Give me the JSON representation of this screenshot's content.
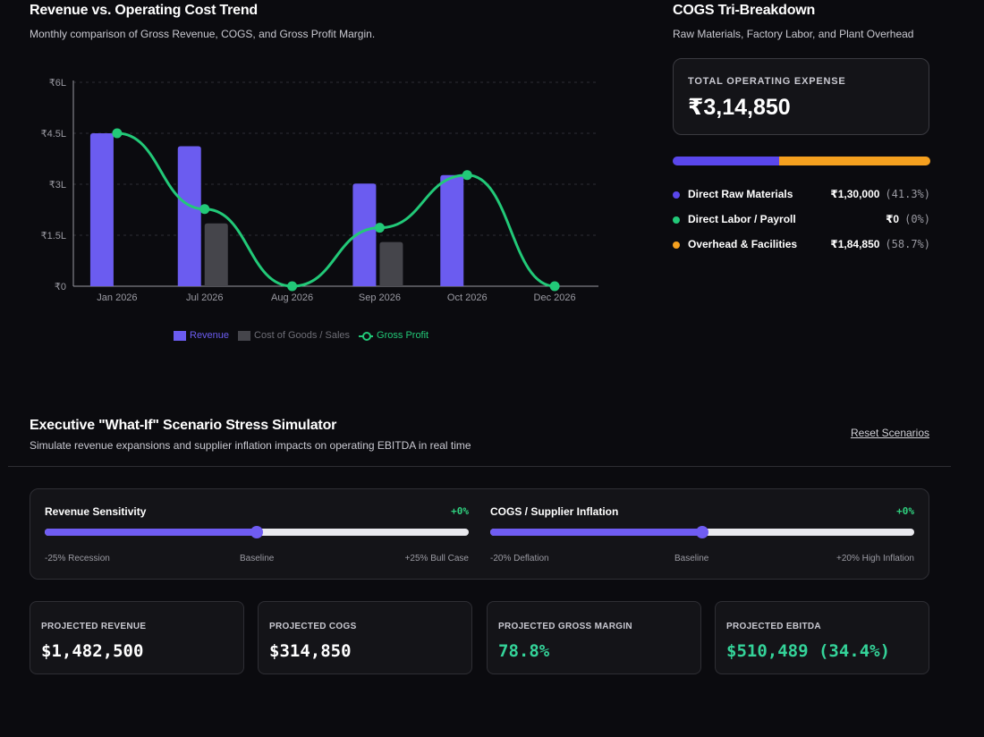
{
  "trend": {
    "title": "Revenue vs. Operating Cost Trend",
    "subtitle": "Monthly comparison of Gross Revenue, COGS, and Gross Profit Margin."
  },
  "chart_data": {
    "type": "bar",
    "categories": [
      "Jan 2026",
      "Jul 2026",
      "Aug 2026",
      "Sep 2026",
      "Oct 2026",
      "Dec 2026"
    ],
    "series": [
      {
        "name": "Revenue",
        "type": "bar",
        "color": "#6b5cf0",
        "values": [
          450000,
          412000,
          0,
          302000,
          327000,
          0
        ]
      },
      {
        "name": "Cost of Goods / Sales",
        "type": "bar",
        "color": "#45454b",
        "values": [
          0,
          185000,
          0,
          130000,
          0,
          0
        ]
      },
      {
        "name": "Gross Profit",
        "type": "line",
        "color": "#22c978",
        "values": [
          450000,
          227000,
          0,
          172000,
          327000,
          0
        ]
      }
    ],
    "ylim": [
      0,
      600000
    ],
    "yticks": [
      {
        "value": 0,
        "label": "₹0"
      },
      {
        "value": 150000,
        "label": "₹1.5L"
      },
      {
        "value": 300000,
        "label": "₹3L"
      },
      {
        "value": 450000,
        "label": "₹4.5L"
      },
      {
        "value": 600000,
        "label": "₹6L"
      }
    ],
    "grid": true,
    "legend_position": "bottom"
  },
  "legend": [
    {
      "label": "Revenue",
      "color": "#6b5cf0",
      "kind": "bar"
    },
    {
      "label": "Cost of Goods / Sales",
      "color": "#45454b",
      "text_color": "#6e6e76",
      "kind": "bar"
    },
    {
      "label": "Gross Profit",
      "color": "#22c978",
      "kind": "line"
    }
  ],
  "cogs": {
    "title": "COGS Tri-Breakdown",
    "subtitle": "Raw Materials, Factory Labor, and Plant Overhead",
    "total_label": "TOTAL OPERATING EXPENSE",
    "total_value": "₹3,14,850",
    "items": [
      {
        "label": "Direct Raw Materials",
        "amount": "₹1,30,000",
        "pct": "(41.3%)",
        "share": 41.3,
        "color": "#5a47ec"
      },
      {
        "label": "Direct Labor / Payroll",
        "amount": "₹0",
        "pct": "(0%)",
        "share": 0,
        "color": "#22c978"
      },
      {
        "label": "Overhead & Facilities",
        "amount": "₹1,84,850",
        "pct": "(58.7%)",
        "share": 58.7,
        "color": "#f5a01f"
      }
    ]
  },
  "simulator": {
    "title": "Executive \"What-If\" Scenario Stress Simulator",
    "subtitle": "Simulate revenue expansions and supplier inflation impacts on operating EBITDA in real time",
    "reset_label": "Reset Scenarios",
    "sliders": [
      {
        "title": "Revenue Sensitivity",
        "delta": "+0%",
        "value_fraction": 0.5,
        "min_label": "-25% Recession",
        "mid_label": "Baseline",
        "max_label": "+25% Bull Case"
      },
      {
        "title": "COGS / Supplier Inflation",
        "delta": "+0%",
        "value_fraction": 0.5,
        "min_label": "-20% Deflation",
        "mid_label": "Baseline",
        "max_label": "+20% High Inflation"
      }
    ],
    "kpis": [
      {
        "label": "PROJECTED REVENUE",
        "value": "$1,482,500",
        "color": "#ffffff"
      },
      {
        "label": "PROJECTED COGS",
        "value": "$314,850",
        "color": "#ffffff"
      },
      {
        "label": "PROJECTED GROSS MARGIN",
        "value": "78.8%",
        "color": "#34d399"
      },
      {
        "label": "PROJECTED EBITDA",
        "value": "$510,489 (34.4%)",
        "color": "#34d399"
      }
    ]
  }
}
